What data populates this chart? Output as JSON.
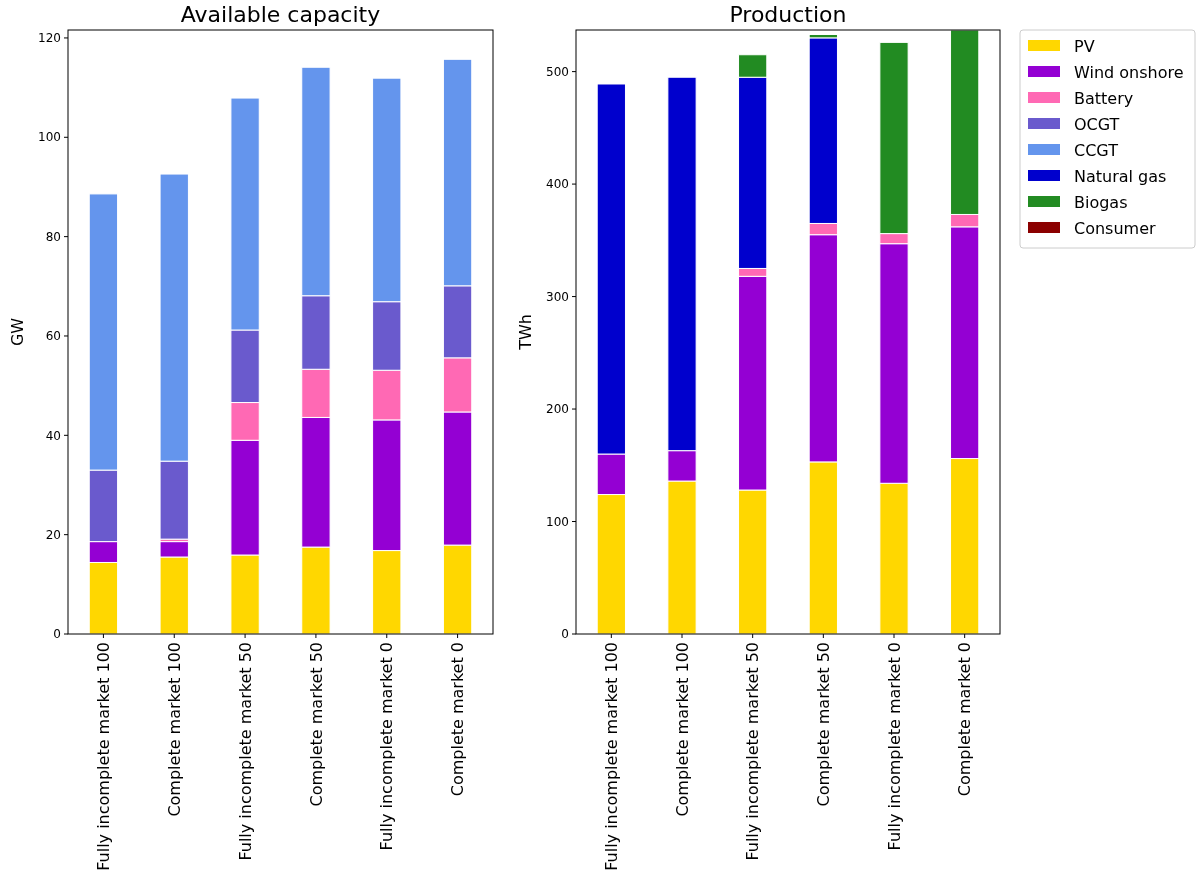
{
  "chart_data": [
    {
      "type": "bar",
      "title": "Available capacity",
      "ylabel": "GW",
      "stacked": true,
      "legend": "right",
      "categories": [
        "Fully incomplete market 100",
        "Complete market 100",
        "Fully incomplete market 50",
        "Complete market 50",
        "Fully incomplete market 0",
        "Complete market 0"
      ],
      "ylim": [
        0,
        121.6
      ],
      "yticks": [
        0,
        20,
        40,
        60,
        80,
        100,
        120
      ],
      "series": [
        {
          "name": "PV",
          "color": "#ffd700",
          "values": [
            14.4,
            15.5,
            15.9,
            17.5,
            16.8,
            17.9
          ]
        },
        {
          "name": "Wind onshore",
          "color": "#9400d3",
          "values": [
            4.2,
            3.1,
            23.1,
            26.1,
            26.3,
            26.8
          ]
        },
        {
          "name": "Battery",
          "color": "#ff69b4",
          "values": [
            0,
            0.5,
            7.6,
            9.7,
            10.0,
            10.9
          ]
        },
        {
          "name": "OCGT",
          "color": "#6a5acd",
          "values": [
            14.4,
            15.7,
            14.6,
            14.8,
            13.8,
            14.5
          ]
        },
        {
          "name": "CCGT",
          "color": "#6495ed",
          "values": [
            55.6,
            57.8,
            46.7,
            46.0,
            45.0,
            45.6
          ]
        }
      ]
    },
    {
      "type": "bar",
      "title": "Production",
      "ylabel": "TWh",
      "stacked": true,
      "legend": "right",
      "categories": [
        "Fully incomplete market 100",
        "Complete market 100",
        "Fully incomplete market 50",
        "Complete market 50",
        "Fully incomplete market 0",
        "Complete market 0"
      ],
      "ylim": [
        0,
        537
      ],
      "yticks": [
        0,
        100,
        200,
        300,
        400,
        500
      ],
      "series": [
        {
          "name": "PV",
          "color": "#ffd700",
          "values": [
            124,
            136,
            128,
            153,
            134,
            156
          ]
        },
        {
          "name": "Wind onshore",
          "color": "#9400d3",
          "values": [
            36,
            27,
            190,
            202,
            213,
            206
          ]
        },
        {
          "name": "Battery",
          "color": "#ff69b4",
          "values": [
            0,
            0,
            7,
            10,
            9,
            11
          ]
        },
        {
          "name": "OCGT",
          "color": "#6a5acd",
          "values": [
            0,
            0,
            0,
            0,
            0,
            0
          ]
        },
        {
          "name": "CCGT",
          "color": "#6495ed",
          "values": [
            0,
            0,
            0,
            0,
            0,
            0
          ]
        },
        {
          "name": "Natural gas",
          "color": "#0000cd",
          "values": [
            329,
            332,
            170,
            165,
            0,
            0
          ]
        },
        {
          "name": "Biogas",
          "color": "#228b22",
          "values": [
            0,
            0,
            20,
            3,
            170,
            164
          ]
        },
        {
          "name": "Consumer",
          "color": "#8b0000",
          "values": [
            0,
            0,
            0,
            0,
            0,
            0
          ]
        }
      ]
    }
  ]
}
